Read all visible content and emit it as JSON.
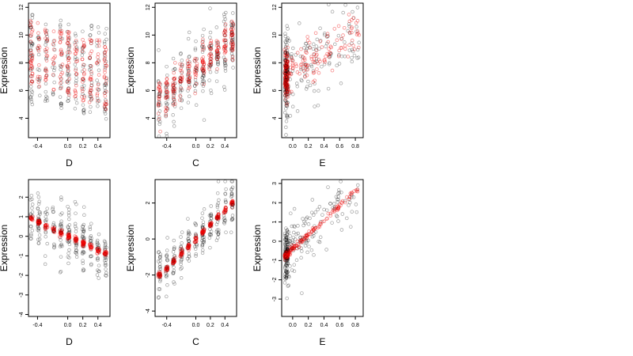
{
  "colors": {
    "observed": "#000000",
    "fitted": "#ee0000",
    "background": "#ffffff"
  },
  "chart_data": [
    {
      "type": "scatter",
      "xlabel": "D",
      "ylabel": "Expression",
      "xlim": [
        -0.52,
        0.56
      ],
      "ylim": [
        2.6,
        12.3
      ],
      "xticks": [
        -0.4,
        0.0,
        0.2,
        0.4
      ],
      "yticks": [
        4,
        6,
        8,
        10,
        12
      ],
      "trend": {
        "kind": "banded",
        "x_min": -0.48,
        "x_max": 0.5,
        "black_hi": [
          11.5,
          10.5
        ],
        "black_lo": [
          5.0,
          3.5
        ],
        "red_hi": [
          11.0,
          9.5
        ],
        "red_lo": [
          6.5,
          4.5
        ]
      }
    },
    {
      "type": "scatter",
      "xlabel": "C",
      "ylabel": "Expression",
      "xlim": [
        -0.56,
        0.56
      ],
      "ylim": [
        2.6,
        12.3
      ],
      "xticks": [
        -0.4,
        0.0,
        0.2,
        0.4
      ],
      "yticks": [
        4,
        6,
        8,
        10,
        12
      ],
      "trend": {
        "kind": "linear",
        "x_min": -0.5,
        "x_max": 0.5,
        "y_at_min": 5.3,
        "y_at_max": 9.8,
        "black_sd": 1.3,
        "red_sd": 0.7
      }
    },
    {
      "type": "scatter",
      "xlabel": "E",
      "ylabel": "Expression",
      "xlim": [
        -0.14,
        0.9
      ],
      "ylim": [
        2.6,
        12.3
      ],
      "xticks": [
        0.0,
        0.2,
        0.4,
        0.6,
        0.8
      ],
      "yticks": [
        4,
        6,
        8,
        10,
        12
      ],
      "trend": {
        "kind": "skewed",
        "x_min": -0.1,
        "x_max": 0.85,
        "y_at_min": 7.0,
        "y_at_max": 10.3,
        "black_sd": 1.5,
        "red_sd": 0.9
      }
    },
    {
      "type": "scatter",
      "xlabel": "D",
      "ylabel": "Expression",
      "xlim": [
        -0.52,
        0.56
      ],
      "ylim": [
        -4.1,
        2.9
      ],
      "xticks": [
        -0.4,
        0.0,
        0.2,
        0.4
      ],
      "yticks": [
        -4,
        -3,
        -2,
        -1,
        0,
        1,
        2
      ],
      "trend": {
        "kind": "linear",
        "x_min": -0.48,
        "x_max": 0.5,
        "y_at_min": 0.9,
        "y_at_max": -0.9,
        "black_sd": 0.75,
        "red_sd": 0.07
      }
    },
    {
      "type": "scatter",
      "xlabel": "C",
      "ylabel": "Expression",
      "xlim": [
        -0.56,
        0.56
      ],
      "ylim": [
        -4.3,
        3.3
      ],
      "xticks": [
        -0.4,
        0.0,
        0.2,
        0.4
      ],
      "yticks": [
        -4,
        -2,
        0,
        2
      ],
      "trend": {
        "kind": "linear",
        "x_min": -0.5,
        "x_max": 0.5,
        "y_at_min": -2.0,
        "y_at_max": 2.0,
        "black_sd": 0.7,
        "red_sd": 0.08
      }
    },
    {
      "type": "scatter",
      "xlabel": "E",
      "ylabel": "Expression",
      "xlim": [
        -0.14,
        0.9
      ],
      "ylim": [
        -3.9,
        3.2
      ],
      "xticks": [
        0.0,
        0.2,
        0.4,
        0.6,
        0.8
      ],
      "yticks": [
        -3,
        -2,
        -1,
        0,
        1,
        2,
        3
      ],
      "trend": {
        "kind": "skewed",
        "x_min": -0.1,
        "x_max": 0.85,
        "y_at_min": -0.8,
        "y_at_max": 2.8,
        "black_sd": 0.75,
        "red_sd": 0.08
      }
    }
  ]
}
